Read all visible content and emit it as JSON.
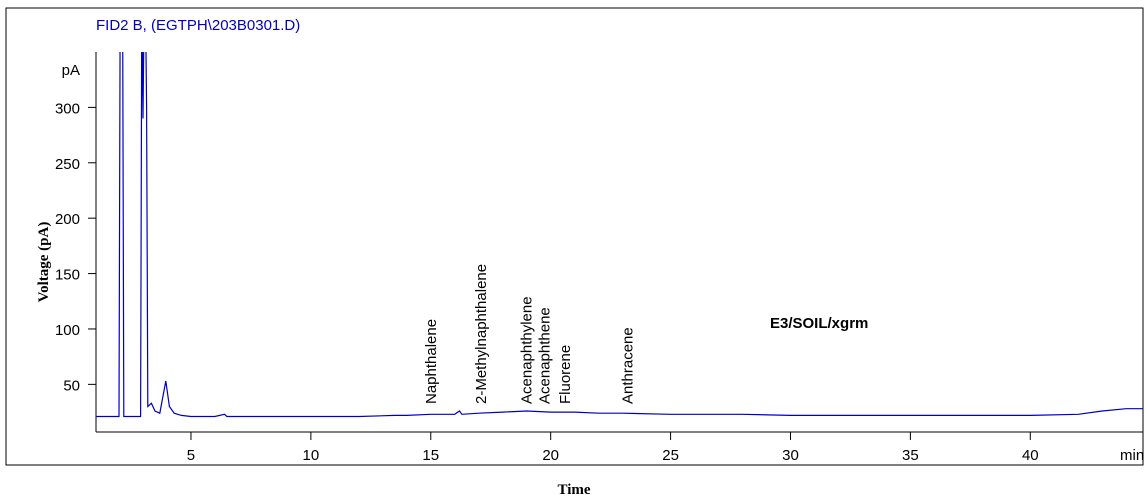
{
  "chart_data": {
    "type": "line",
    "title": "FID2 B,  (EGTPH\\203B0301.D)",
    "xlabel": "Time",
    "ylabel": "Voltage (pA)",
    "x_unit": "min",
    "y_unit": "pA",
    "note": "E3/SOIL/xgrm",
    "xlim": [
      1.04,
      44.7
    ],
    "ylim": [
      7,
      350
    ],
    "xticks": [
      5,
      10,
      15,
      20,
      25,
      30,
      35,
      40
    ],
    "yticks": [
      50,
      100,
      150,
      200,
      250,
      300
    ],
    "color": "#0000c0",
    "annotations": [
      {
        "text": "Naphthalene",
        "x": 15.0
      },
      {
        "text": "2-Methylnaphthalene",
        "x": 17.1
      },
      {
        "text": "Acenaphthylene",
        "x": 19.0
      },
      {
        "text": "Acenaphthene",
        "x": 19.75
      },
      {
        "text": "Fluorene",
        "x": 20.6
      },
      {
        "text": "Anthracene",
        "x": 23.2
      }
    ],
    "x": [
      1.04,
      2.0,
      2.05,
      2.15,
      2.2,
      2.9,
      2.95,
      3.0,
      3.05,
      3.1,
      3.15,
      3.2,
      3.35,
      3.5,
      3.7,
      3.95,
      4.1,
      4.3,
      4.6,
      5,
      6,
      6.4,
      6.5,
      8,
      10,
      12,
      13.5,
      14,
      15,
      16,
      16.2,
      16.3,
      17,
      18,
      19,
      20,
      21,
      22,
      23,
      25,
      28,
      30,
      35,
      40,
      42,
      43,
      44,
      44.7
    ],
    "values": [
      21,
      21,
      400,
      400,
      21,
      21,
      400,
      290,
      400,
      400,
      300,
      30,
      33,
      26,
      24,
      53,
      30,
      24,
      22,
      21,
      21,
      23,
      21,
      21,
      21,
      21,
      22,
      22,
      23,
      23,
      26,
      23,
      24,
      25,
      26,
      25,
      25,
      24,
      24,
      23,
      23,
      22,
      22,
      22,
      23,
      26,
      28,
      28
    ]
  }
}
